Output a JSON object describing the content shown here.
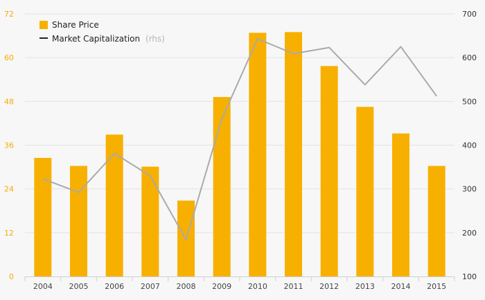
{
  "chart_data": {
    "type": "bar",
    "categories": [
      "2004",
      "2005",
      "2006",
      "2007",
      "2008",
      "2009",
      "2010",
      "2011",
      "2012",
      "2013",
      "2014",
      "2015"
    ],
    "series": [
      {
        "name": "Share Price",
        "type": "bar",
        "axis": "left",
        "values": [
          32.5,
          30.3,
          38.9,
          30.1,
          20.8,
          49.2,
          66.8,
          67.0,
          57.7,
          46.5,
          39.2,
          30.3
        ]
      },
      {
        "name": "Market Capitalization",
        "name_suffix": "(rhs)",
        "type": "line",
        "axis": "right",
        "values": [
          323,
          292,
          381,
          330,
          184,
          460,
          643,
          609,
          623,
          538,
          625,
          512
        ]
      }
    ],
    "y_left": {
      "lim": [
        0,
        72
      ],
      "ticks": [
        "0",
        "12",
        "24",
        "36",
        "48",
        "60",
        "72"
      ]
    },
    "y_right": {
      "lim": [
        100,
        700
      ],
      "ticks": [
        "100",
        "200",
        "300",
        "400",
        "500",
        "600",
        "700"
      ]
    },
    "grid": true,
    "legend": {
      "position": "top-left"
    },
    "colors": {
      "bar": "#f7b000",
      "line": "#aaaaaa",
      "left_ticks": "#f5ad00",
      "grid": "#e3e3e3",
      "background": "#f7f7f7"
    }
  }
}
